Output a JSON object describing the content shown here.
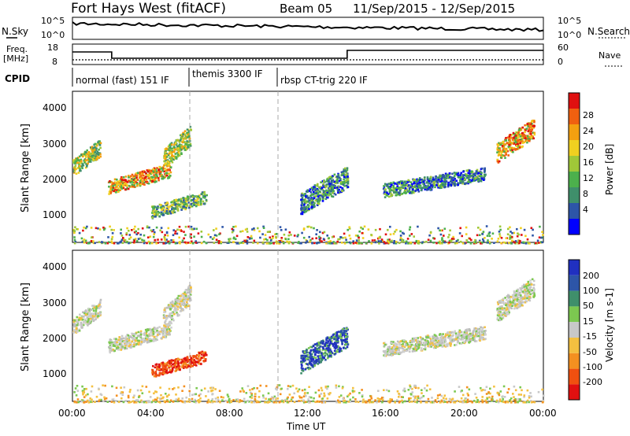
{
  "header": {
    "station": "Fort Hays West (fitACF)",
    "beam": "Beam 05",
    "dates": "11/Sep/2015 - 12/Sep/2015"
  },
  "noise_panel": {
    "left_label": "N.Sky",
    "left_ticks": [
      "10^5",
      "10^0"
    ],
    "right_label": "N.Search",
    "right_ticks": [
      "10^5",
      "10^0"
    ]
  },
  "freq_panel": {
    "left_label_line1": "Freq.",
    "left_label_line2": "[MHz]",
    "left_ticks": [
      "18",
      "8"
    ],
    "right_label": "Nave",
    "right_ticks": [
      "60",
      "0"
    ]
  },
  "cpid": {
    "label": "CPID",
    "segments": [
      {
        "start_hour": 0,
        "end_hour": 6,
        "name": "normal (fast) 151 IF"
      },
      {
        "start_hour": 6,
        "end_hour": 10.5,
        "name": "themis 3300 IF"
      },
      {
        "start_hour": 10.5,
        "end_hour": 24,
        "name": "rbsp CT-trig 220 IF"
      }
    ]
  },
  "panels": {
    "y_label": "Slant Range [km]",
    "y_ticks": [
      "4000",
      "3000",
      "2000",
      "1000"
    ],
    "x_label": "Time UT",
    "x_ticks": [
      "00:00",
      "04:00",
      "08:00",
      "12:00",
      "16:00",
      "20:00",
      "00:00"
    ]
  },
  "power_colorbar": {
    "label": "Power [dB]",
    "ticks": [
      "28",
      "24",
      "20",
      "16",
      "12",
      "8",
      "4"
    ]
  },
  "velocity_colorbar": {
    "label": "Velocity [m s-1]",
    "ticks": [
      "200",
      "100",
      "50",
      "15",
      "-15",
      "-50",
      "-100",
      "-200"
    ]
  },
  "colors": {
    "power": [
      "#0000ff",
      "#2d55a8",
      "#3f8f6b",
      "#4cb04c",
      "#a0c838",
      "#f0d020",
      "#f4a010",
      "#f06010",
      "#e01010"
    ],
    "velocity": [
      "#2030c0",
      "#2d55a8",
      "#3f8f6b",
      "#7cc850",
      "#c8c8c8",
      "#f4c040",
      "#f49020",
      "#f05010",
      "#e01010"
    ]
  },
  "chart_data": {
    "type": "heatmap",
    "x_range_hours": [
      0,
      24
    ],
    "y_range_km": [
      200,
      4600
    ],
    "vertical_markers_hours": [
      6,
      10.5
    ],
    "power_regions": [
      {
        "t0": 0.0,
        "t1": 1.4,
        "r0": 2100,
        "r1": 3200,
        "level": "orange-green"
      },
      {
        "t0": 1.8,
        "t1": 5.0,
        "r0": 1600,
        "r1": 2500,
        "level": "orange-red"
      },
      {
        "t0": 4.6,
        "t1": 6.0,
        "r0": 2300,
        "r1": 3600,
        "level": "orange-yellow"
      },
      {
        "t0": 4.0,
        "t1": 6.8,
        "r0": 900,
        "r1": 1700,
        "level": "green"
      },
      {
        "t0": 11.6,
        "t1": 14.0,
        "r0": 1000,
        "r1": 2400,
        "level": "blue-green"
      },
      {
        "t0": 15.8,
        "t1": 21.0,
        "r0": 1500,
        "r1": 2400,
        "level": "blue-green"
      },
      {
        "t0": 21.6,
        "t1": 23.5,
        "r0": 2500,
        "r1": 3800,
        "level": "yellow-red"
      },
      {
        "t0": 0.0,
        "t1": 24.0,
        "r0": 200,
        "r1": 700,
        "level": "ground-scatter"
      }
    ],
    "velocity_regions": [
      {
        "t0": 0.0,
        "t1": 1.4,
        "r0": 2100,
        "r1": 3200,
        "level": "grey"
      },
      {
        "t0": 1.8,
        "t1": 5.0,
        "r0": 1600,
        "r1": 2500,
        "level": "grey"
      },
      {
        "t0": 4.6,
        "t1": 6.0,
        "r0": 2300,
        "r1": 3600,
        "level": "grey"
      },
      {
        "t0": 4.0,
        "t1": 6.8,
        "r0": 900,
        "r1": 1700,
        "level": "red"
      },
      {
        "t0": 11.6,
        "t1": 14.0,
        "r0": 1000,
        "r1": 2400,
        "level": "blue"
      },
      {
        "t0": 15.8,
        "t1": 21.0,
        "r0": 1500,
        "r1": 2400,
        "level": "grey"
      },
      {
        "t0": 21.6,
        "t1": 23.5,
        "r0": 2500,
        "r1": 3800,
        "level": "grey"
      },
      {
        "t0": 0.0,
        "t1": 24.0,
        "r0": 200,
        "r1": 700,
        "level": "orange-yellow"
      }
    ]
  }
}
